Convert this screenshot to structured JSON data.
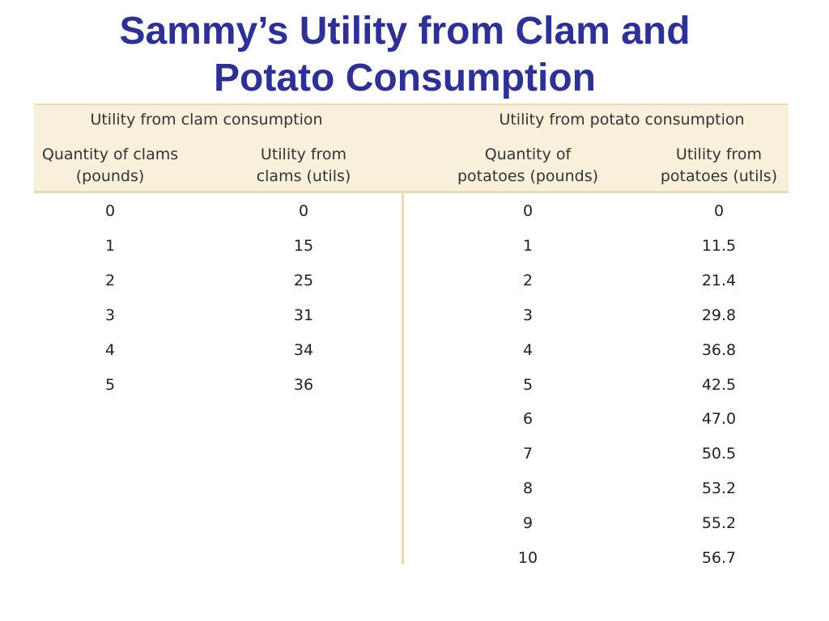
{
  "title_lines": [
    "Sammy’s Utility from Clam and",
    "Potato Consumption"
  ],
  "table": {
    "groups": [
      "Utility from clam consumption",
      "Utility from potato consumption"
    ],
    "columns": [
      [
        "Quantity of clams",
        "(pounds)"
      ],
      [
        "Utility from",
        "clams (utils)"
      ],
      [
        "Quantity of",
        "potatoes (pounds)"
      ],
      [
        "Utility from",
        "potatoes (utils)"
      ]
    ],
    "clam_rows": [
      [
        "0",
        "0"
      ],
      [
        "1",
        "15"
      ],
      [
        "2",
        "25"
      ],
      [
        "3",
        "31"
      ],
      [
        "4",
        "34"
      ],
      [
        "5",
        "36"
      ]
    ],
    "potato_rows": [
      [
        "0",
        "0"
      ],
      [
        "1",
        "11.5"
      ],
      [
        "2",
        "21.4"
      ],
      [
        "3",
        "29.8"
      ],
      [
        "4",
        "36.8"
      ],
      [
        "5",
        "42.5"
      ],
      [
        "6",
        "47.0"
      ],
      [
        "7",
        "50.5"
      ],
      [
        "8",
        "53.2"
      ],
      [
        "9",
        "55.2"
      ],
      [
        "10",
        "56.7"
      ]
    ]
  }
}
